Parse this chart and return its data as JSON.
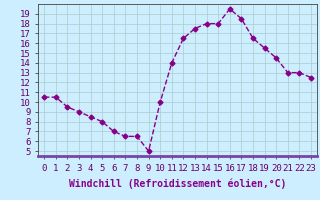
{
  "x": [
    0,
    1,
    2,
    3,
    4,
    5,
    6,
    7,
    8,
    9,
    10,
    11,
    12,
    13,
    14,
    15,
    16,
    17,
    18,
    19,
    20,
    21,
    22,
    23
  ],
  "y": [
    10.5,
    10.5,
    9.5,
    9.0,
    8.5,
    8.0,
    7.0,
    6.5,
    6.5,
    5.0,
    10.0,
    14.0,
    16.5,
    17.5,
    18.0,
    18.0,
    19.5,
    18.5,
    16.5,
    15.5,
    14.5,
    13.0,
    13.0,
    12.5
  ],
  "line_color": "#880088",
  "marker": "D",
  "markersize": 2.5,
  "linewidth": 1.0,
  "bg_color": "#cceeff",
  "grid_color": "#aacccc",
  "xlabel": "Windchill (Refroidissement éolien,°C)",
  "xlabel_fontsize": 7,
  "xlabel_fontweight": "bold",
  "ylabel_ticks": [
    5,
    6,
    7,
    8,
    9,
    10,
    11,
    12,
    13,
    14,
    15,
    16,
    17,
    18,
    19
  ],
  "ylim": [
    4.5,
    20.0
  ],
  "xlim": [
    -0.5,
    23.5
  ],
  "tick_fontsize": 6.5,
  "spine_color": "#444444",
  "bottom_bar_color": "#7744aa"
}
